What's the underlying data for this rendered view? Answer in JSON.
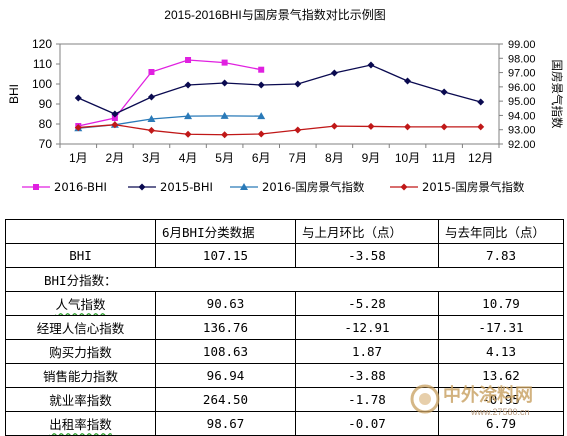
{
  "chart_data": {
    "type": "line",
    "title": "2015-2016BHI与国房景气指数对比示例图",
    "categories": [
      "1月",
      "2月",
      "3月",
      "4月",
      "5月",
      "6月",
      "7月",
      "8月",
      "9月",
      "10月",
      "11月",
      "12月"
    ],
    "ylabel_left": "BHI",
    "ylabel_right": "国房景气指数",
    "ylim_left": [
      70,
      120
    ],
    "yticks_left": [
      "70",
      "80",
      "90",
      "100",
      "110",
      "120"
    ],
    "ylim_right": [
      92,
      99
    ],
    "yticks_right": [
      "92.00",
      "93.00",
      "94.00",
      "95.00",
      "96.00",
      "97.00",
      "98.00",
      "99.00"
    ],
    "grid": false,
    "legend_position": "bottom",
    "series": [
      {
        "name": "2016-BHI",
        "axis": "left",
        "color": "#e020e0",
        "marker": "square",
        "values": [
          79,
          83,
          106,
          112,
          110.7,
          107.15,
          null,
          null,
          null,
          null,
          null,
          null
        ]
      },
      {
        "name": "2015-BHI",
        "axis": "left",
        "color": "#0a0a50",
        "marker": "diamond",
        "values": [
          93,
          85,
          93.5,
          99.5,
          100.5,
          99.5,
          100,
          105.5,
          109.5,
          101.5,
          96,
          91
        ]
      },
      {
        "name": "2016-国房景气指数",
        "axis": "right",
        "color": "#2a7ab8",
        "marker": "triangle",
        "values": [
          93.1,
          93.35,
          93.75,
          93.95,
          93.97,
          93.95,
          null,
          null,
          null,
          null,
          null,
          null
        ]
      },
      {
        "name": "2015-国房景气指数",
        "axis": "right",
        "color": "#c01818",
        "marker": "diamond",
        "values": [
          93.15,
          93.35,
          92.95,
          92.68,
          92.65,
          92.7,
          92.98,
          93.25,
          93.23,
          93.2,
          93.2,
          93.2
        ]
      }
    ]
  },
  "table": {
    "headers": [
      "",
      "6月BHI分类数据",
      "与上月环比（点）",
      "与去年同比（点）"
    ],
    "bhi_row": {
      "name": "BHI",
      "value": "107.15",
      "mom": "-3.58",
      "yoy": "7.83"
    },
    "section_label": "BHI分指数：",
    "rows": [
      {
        "name": "人气指数",
        "value": "90.63",
        "mom": "-5.28",
        "yoy": "10.79"
      },
      {
        "name": "经理人信心指数",
        "value": "136.76",
        "mom": "-12.91",
        "yoy": "-17.31"
      },
      {
        "name": "购买力指数",
        "value": "108.63",
        "mom": "1.87",
        "yoy": "4.13"
      },
      {
        "name": "销售能力指数",
        "value": "96.94",
        "mom": "-3.88",
        "yoy": "13.62"
      },
      {
        "name": "就业率指数",
        "value": "264.50",
        "mom": "-1.78",
        "yoy": "-0.95"
      },
      {
        "name": "出租率指数",
        "value": "98.67",
        "mom": "-0.07",
        "yoy": "6.79"
      }
    ]
  },
  "watermark": {
    "brand": "中外涂料网",
    "url": "www.27580.cn",
    "color": "#c8a060"
  }
}
